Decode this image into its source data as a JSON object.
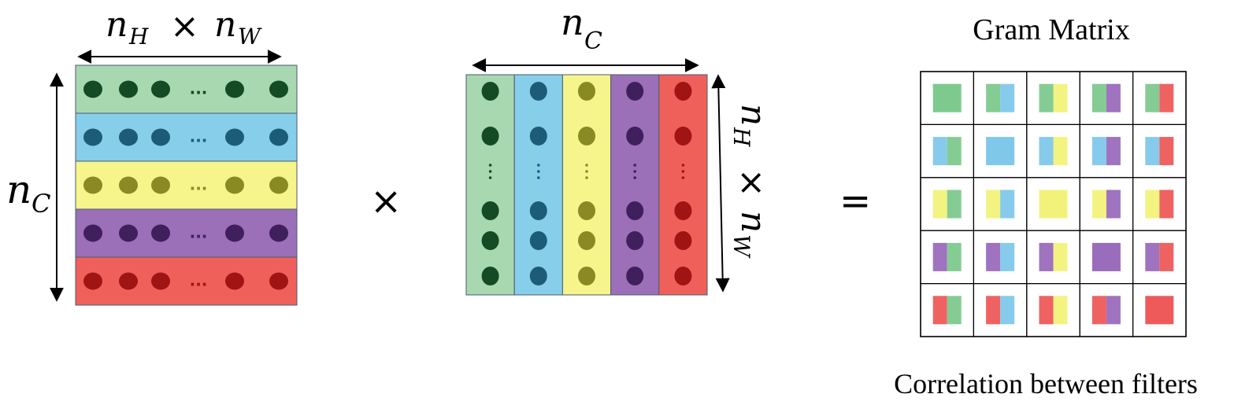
{
  "labels": {
    "row_width": "n",
    "row_width_sub1": "H",
    "row_width_op": "×",
    "row_width_sub2_base": "n",
    "row_width_sub2": "W",
    "channels": "n",
    "channels_sub": "C",
    "col_height": "n",
    "col_height_sub1": "H",
    "col_height_op": "×",
    "col_height_sub2_base": "n",
    "col_height_sub2": "W",
    "multiply": "×",
    "equals": "=",
    "gram_title": "Gram Matrix",
    "gram_caption": "Correlation between filters",
    "ellipsis": "..."
  },
  "colors": {
    "bands": [
      {
        "name": "green",
        "fill": "#a8d8b0",
        "dot": "#144a24",
        "cell": "#7ec98e"
      },
      {
        "name": "blue",
        "fill": "#87ceeb",
        "dot": "#1c5c78",
        "cell": "#7fc8ea"
      },
      {
        "name": "yellow",
        "fill": "#f5f58c",
        "dot": "#8a8a24",
        "cell": "#f2f27a"
      },
      {
        "name": "purple",
        "fill": "#9b70b8",
        "dot": "#3f1f5c",
        "cell": "#9a6cbc"
      },
      {
        "name": "red",
        "fill": "#f0605a",
        "dot": "#a01414",
        "cell": "#ee5a5a"
      }
    ],
    "border": "#4a5a70"
  },
  "matrix": {
    "rows": 5,
    "cols": 5
  }
}
